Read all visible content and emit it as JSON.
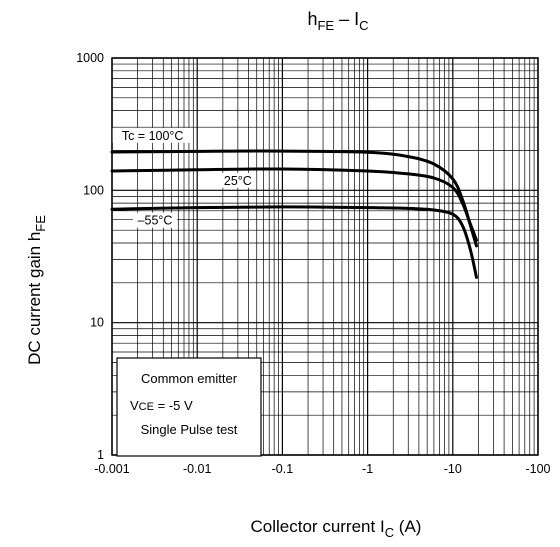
{
  "chart_data": {
    "type": "line",
    "title": {
      "main": "h",
      "sub": "FE",
      "sep": " – I",
      "sub2": "C"
    },
    "xlabel": {
      "main": "Collector current   I",
      "sub": "C",
      "unit": "   (A)"
    },
    "ylabel": {
      "main": "DC current gain   h",
      "sub": "FE"
    },
    "x_scale": "log",
    "y_scale": "log",
    "xlim": [
      -0.001,
      -100
    ],
    "ylim": [
      1,
      1000
    ],
    "x_tick_labels": [
      "-0.001",
      "-0.01",
      "-0.1",
      "-1",
      "-10",
      "-100"
    ],
    "y_tick_labels": [
      "1",
      "10",
      "100",
      "1000"
    ],
    "grid": true,
    "series": [
      {
        "name": "Tc = 100°C",
        "points": [
          [
            -0.001,
            195
          ],
          [
            -0.01,
            197
          ],
          [
            -0.1,
            198
          ],
          [
            -1,
            194
          ],
          [
            -3,
            180
          ],
          [
            -6,
            158
          ],
          [
            -10,
            122
          ],
          [
            -13,
            85
          ],
          [
            -16,
            55
          ],
          [
            -19,
            38
          ]
        ]
      },
      {
        "name": "25°C",
        "points": [
          [
            -0.001,
            140
          ],
          [
            -0.01,
            143
          ],
          [
            -0.1,
            145
          ],
          [
            -1,
            140
          ],
          [
            -3,
            133
          ],
          [
            -6,
            124
          ],
          [
            -10,
            105
          ],
          [
            -13,
            80
          ],
          [
            -16,
            56
          ],
          [
            -19,
            42
          ]
        ]
      },
      {
        "name": "–55°C",
        "points": [
          [
            -0.001,
            72
          ],
          [
            -0.01,
            74
          ],
          [
            -0.1,
            75
          ],
          [
            -1,
            74
          ],
          [
            -3,
            73
          ],
          [
            -6,
            71
          ],
          [
            -10,
            66
          ],
          [
            -13,
            54
          ],
          [
            -16,
            36
          ],
          [
            -19,
            22
          ]
        ]
      }
    ],
    "conditions": {
      "line1": "Common emitter",
      "line2_main": "V",
      "line2_sub": "CE",
      "line2_rest": " = -5 V",
      "line3": "Single Pulse test"
    }
  }
}
